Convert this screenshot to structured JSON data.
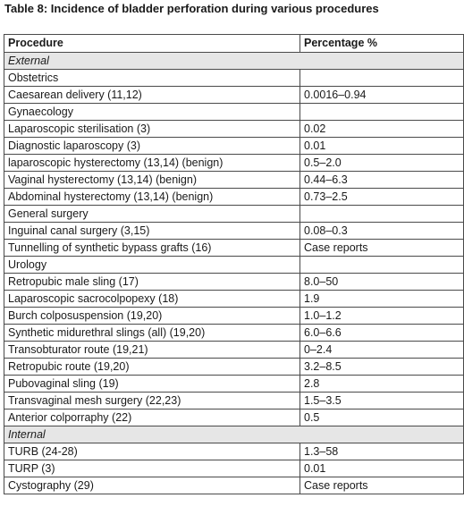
{
  "caption": "Table 8: Incidence of bladder perforation during various procedures",
  "headers": {
    "procedure": "Procedure",
    "percentage": "Percentage %"
  },
  "rows": [
    {
      "type": "section",
      "procedure": "External",
      "value": ""
    },
    {
      "type": "group",
      "procedure": "Obstetrics",
      "value": ""
    },
    {
      "type": "item",
      "procedure": "Caesarean delivery (11,12)",
      "value": "0.0016–0.94"
    },
    {
      "type": "group",
      "procedure": "Gynaecology",
      "value": ""
    },
    {
      "type": "item",
      "procedure": "Laparoscopic sterilisation (3)",
      "value": "0.02"
    },
    {
      "type": "item",
      "procedure": "Diagnostic laparoscopy (3)",
      "value": "0.01"
    },
    {
      "type": "item",
      "procedure": "laparoscopic hysterectomy (13,14) (benign)",
      "value": "0.5–2.0"
    },
    {
      "type": "item",
      "procedure": "Vaginal hysterectomy (13,14) (benign)",
      "value": "0.44–6.3"
    },
    {
      "type": "item",
      "procedure": "Abdominal hysterectomy (13,14) (benign)",
      "value": "0.73–2.5"
    },
    {
      "type": "group",
      "procedure": "General surgery",
      "value": ""
    },
    {
      "type": "item",
      "procedure": "Inguinal canal surgery (3,15)",
      "value": "0.08–0.3"
    },
    {
      "type": "item",
      "procedure": "Tunnelling of synthetic bypass grafts (16)",
      "value": "Case reports"
    },
    {
      "type": "group",
      "procedure": "Urology",
      "value": ""
    },
    {
      "type": "item",
      "procedure": "Retropubic male sling (17)",
      "value": "8.0–50"
    },
    {
      "type": "item",
      "procedure": "Laparoscopic sacrocolpopexy (18)",
      "value": "1.9"
    },
    {
      "type": "item",
      "procedure": "Burch colposuspension (19,20)",
      "value": "1.0–1.2"
    },
    {
      "type": "item",
      "procedure": "Synthetic midurethral slings (all) (19,20)",
      "value": "6.0–6.6"
    },
    {
      "type": "item",
      "procedure": "Transobturator route (19,21)",
      "value": "0–2.4"
    },
    {
      "type": "item",
      "procedure": "Retropubic route (19,20)",
      "value": "3.2–8.5"
    },
    {
      "type": "item",
      "procedure": "Pubovaginal sling (19)",
      "value": "2.8"
    },
    {
      "type": "item",
      "procedure": "Transvaginal mesh surgery (22,23)",
      "value": "1.5–3.5"
    },
    {
      "type": "item",
      "procedure": "Anterior colporraphy (22)",
      "value": "0.5"
    },
    {
      "type": "section",
      "procedure": "Internal",
      "value": ""
    },
    {
      "type": "item",
      "procedure": "TURB (24-28)",
      "value": "1.3–58"
    },
    {
      "type": "item",
      "procedure": "TURP (3)",
      "value": "0.01"
    },
    {
      "type": "item",
      "procedure": "Cystography (29)",
      "value": "Case reports"
    }
  ],
  "colors": {
    "section_background": "#e6e6e6",
    "border": "#4a4a4a",
    "text": "#1a1a1a"
  }
}
